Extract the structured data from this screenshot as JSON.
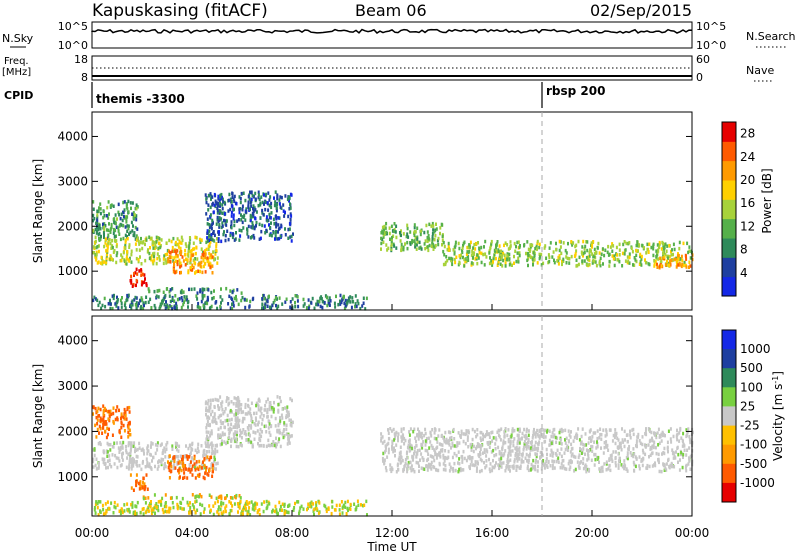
{
  "header": {
    "station": "Kapuskasing (fitACF)",
    "beam": "Beam 06",
    "date": "02/Sep/2015"
  },
  "top_panels": {
    "nsky_label": "N.Sky",
    "nsky_ticks": [
      "10^5",
      "10^0"
    ],
    "nsearch_label": "N.Search",
    "nsearch_ticks": [
      "10^5",
      "10^0"
    ],
    "freq_label_1": "Freq.",
    "freq_label_2": "[MHz]",
    "freq_ticks": [
      "18",
      "8"
    ],
    "nave_label": "Nave",
    "nave_ticks": [
      "60",
      "0"
    ],
    "cpid_label": "CPID",
    "cpid_entries": [
      {
        "text": "themis -3300",
        "time_hours": 0
      },
      {
        "text": "rbsp 200",
        "time_hours": 18
      }
    ]
  },
  "colors": {
    "power": [
      "#1428e6",
      "#1e3fa0",
      "#2e8a5a",
      "#55b04a",
      "#a7d23a",
      "#ffd000",
      "#ff9a00",
      "#ff5a00",
      "#e60000"
    ],
    "velocity": [
      "#e60000",
      "#ff5a00",
      "#ff9a00",
      "#ffc000",
      "#c8c8c8",
      "#78d040",
      "#2e8a5a",
      "#1e3fa0",
      "#1428e6"
    ]
  },
  "chart_data": [
    {
      "type": "heatmap",
      "name": "Power",
      "xlabel": "",
      "ylabel": "Slant Range [km]",
      "x_ticks": [
        "00:00",
        "04:00",
        "08:00",
        "12:00",
        "16:00",
        "20:00",
        "00:00"
      ],
      "xlim_hours": [
        0,
        24
      ],
      "ylim_km": [
        180,
        4500
      ],
      "y_ticks": [
        1000,
        2000,
        3000,
        4000
      ],
      "colorbar": {
        "label": "Power [dB]",
        "ticks": [
          "28",
          "24",
          "20",
          "16",
          "12",
          "8",
          "4"
        ],
        "range": [
          0,
          30
        ]
      },
      "regions": [
        {
          "t": [
            0.0,
            1.8
          ],
          "r": [
            1750,
            2600
          ],
          "v": 10
        },
        {
          "t": [
            0.0,
            5.0
          ],
          "r": [
            1200,
            1800
          ],
          "v": 16
        },
        {
          "t": [
            1.5,
            2.2
          ],
          "r": [
            700,
            1100
          ],
          "v": 27
        },
        {
          "t": [
            3.0,
            4.8
          ],
          "r": [
            1000,
            1500
          ],
          "v": 22
        },
        {
          "t": [
            4.5,
            8.0
          ],
          "r": [
            1700,
            2800
          ],
          "v": 6
        },
        {
          "t": [
            11.5,
            14.0
          ],
          "r": [
            1500,
            2100
          ],
          "v": 12
        },
        {
          "t": [
            14.0,
            24.0
          ],
          "r": [
            1150,
            1700
          ],
          "v": 14
        },
        {
          "t": [
            22.5,
            24.0
          ],
          "r": [
            1100,
            1400
          ],
          "v": 22
        },
        {
          "t": [
            2.0,
            6.0
          ],
          "r": [
            550,
            650
          ],
          "v": 9
        },
        {
          "t": [
            0.0,
            11.0
          ],
          "r": [
            200,
            500
          ],
          "v": 8
        }
      ]
    },
    {
      "type": "heatmap",
      "name": "Velocity",
      "xlabel": "Time UT",
      "ylabel": "Slant Range [km]",
      "x_ticks": [
        "00:00",
        "04:00",
        "08:00",
        "12:00",
        "16:00",
        "20:00",
        "00:00"
      ],
      "xlim_hours": [
        0,
        24
      ],
      "ylim_km": [
        180,
        4500
      ],
      "y_ticks": [
        1000,
        2000,
        3000,
        4000
      ],
      "colorbar": {
        "label": "Velocity [m s^-1]",
        "ticks": [
          "1000",
          "500",
          "100",
          "25",
          "-25",
          "-100",
          "-500",
          "-1000"
        ]
      },
      "regions": [
        {
          "t": [
            0.0,
            1.5
          ],
          "r": [
            1900,
            2600
          ],
          "v": -500
        },
        {
          "t": [
            0.0,
            5.0
          ],
          "r": [
            1200,
            1800
          ],
          "v": 0
        },
        {
          "t": [
            1.5,
            2.2
          ],
          "r": [
            700,
            1100
          ],
          "v": -500
        },
        {
          "t": [
            3.0,
            4.8
          ],
          "r": [
            1000,
            1500
          ],
          "v": -500
        },
        {
          "t": [
            4.5,
            8.0
          ],
          "r": [
            1700,
            2800
          ],
          "v": 0
        },
        {
          "t": [
            11.5,
            24.0
          ],
          "r": [
            1150,
            2100
          ],
          "v": 0
        },
        {
          "t": [
            2.0,
            6.0
          ],
          "r": [
            550,
            650
          ],
          "v": -200
        },
        {
          "t": [
            0.0,
            11.0
          ],
          "r": [
            200,
            500
          ],
          "v": -100
        }
      ]
    }
  ]
}
